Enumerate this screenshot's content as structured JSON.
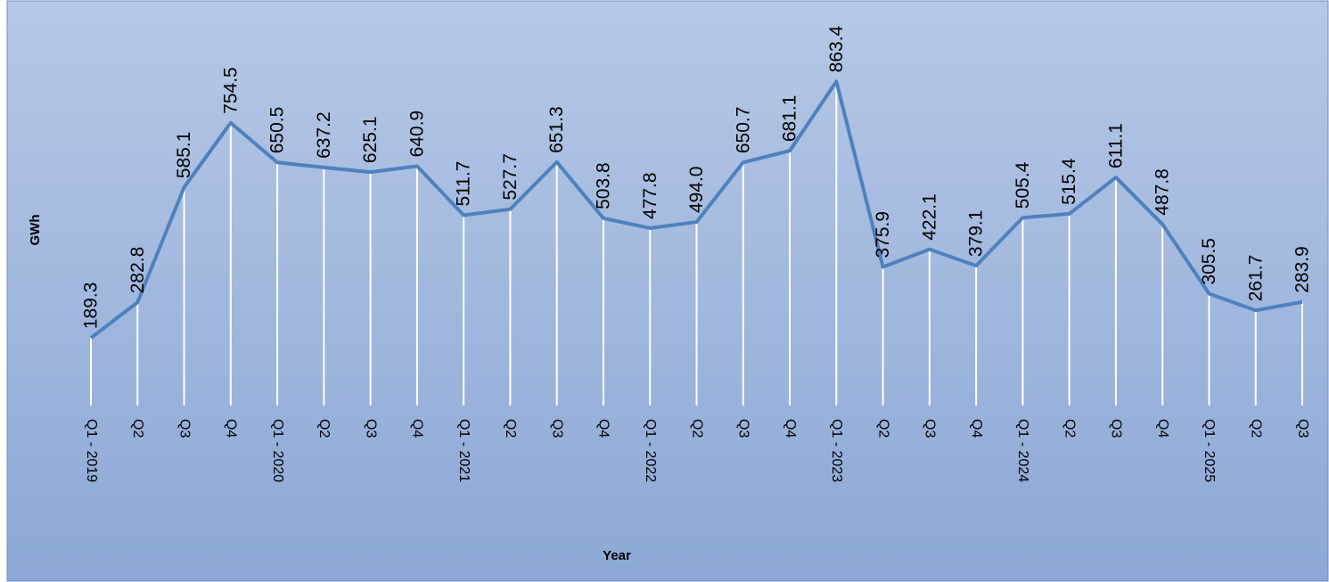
{
  "chart_data": {
    "type": "line",
    "x_label": "Year",
    "y_label": "GWh",
    "categories": [
      "Q1 - 2019",
      "Q2",
      "Q3",
      "Q4",
      "Q1 - 2020",
      "Q2",
      "Q3",
      "Q4",
      "Q1 - 2021",
      "Q2",
      "Q3",
      "Q4",
      "Q1 - 2022",
      "Q2",
      "Q3",
      "Q4",
      "Q1 - 2023",
      "Q2",
      "Q3",
      "Q4",
      "Q1 - 2024",
      "Q2",
      "Q3",
      "Q4",
      "Q1 - 2025",
      "Q2",
      "Q3"
    ],
    "series": [
      {
        "name": "GWh",
        "color": "#4f81bd",
        "values": [
          189.3,
          282.8,
          585.1,
          754.5,
          650.5,
          637.2,
          625.1,
          640.9,
          511.7,
          527.7,
          651.3,
          503.8,
          477.8,
          494,
          650.7,
          681.1,
          863.4,
          375.9,
          422.1,
          379.1,
          505.4,
          515.4,
          611.1,
          487.8,
          305.5,
          261.7,
          283.9
        ],
        "value_labels": [
          "189.3",
          "282.8",
          "585.1",
          "754.5",
          "650.5",
          "637.2",
          "625.1",
          "640.9",
          "511.7",
          "527.7",
          "651.3",
          "503.8",
          "477.8",
          "494.0",
          "650.7",
          "681.1",
          "863.4",
          "375.9",
          "422.1",
          "379.1",
          "505.4",
          "515.4",
          "611.1",
          "487.8",
          "305.5",
          "261.7",
          "283.9"
        ]
      }
    ],
    "ylim": [
      0,
      1000
    ],
    "drop_lines": true
  }
}
